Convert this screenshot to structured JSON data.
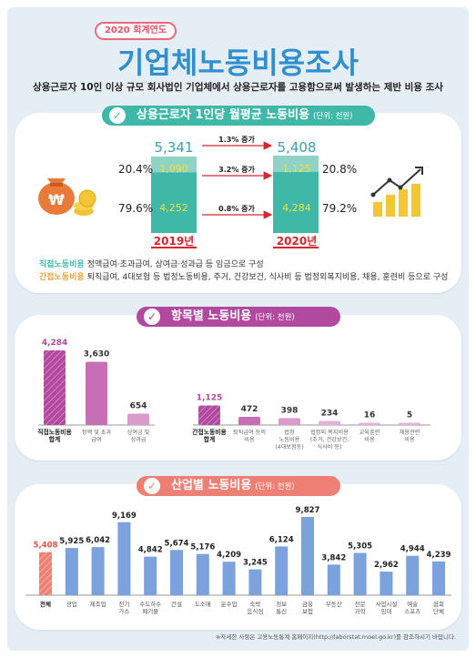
{
  "badge": "2020 회계연도",
  "title": "기업체노동비용조사",
  "subtitle": {
    "part1": "상용근로자 10인 이상 규모 회사법인 ",
    "bold1": "기업체",
    "part2": "에서 ",
    "bold2": "상용근로자",
    "part3": "를 고용함으로써 발생하는 ",
    "bold3": "제반 비용 조사"
  },
  "colors": {
    "blue": "#5b8ed6",
    "teal": "#3fb8a8",
    "purple": "#b14a9e",
    "salmon": "#ee7f74",
    "red": "#d7262e",
    "yellow": "#f5e033"
  },
  "section1": {
    "title": "상용근로자 1인당 월평균 노동비용",
    "unit": "(단위: 천원)",
    "y2019": {
      "label": "2019년",
      "total": "5,341",
      "indirect": "1,090",
      "direct": "4,252",
      "indirect_pct": "20.4%",
      "direct_pct": "79.6%"
    },
    "y2020": {
      "label": "2020년",
      "total": "5,408",
      "indirect": "1,125",
      "direct": "4,284",
      "indirect_pct": "20.8%",
      "direct_pct": "79.2%"
    },
    "growth": {
      "total": "1.3% 증가",
      "indirect": "3.2% 증가",
      "direct": "0.8% 증가"
    },
    "def_direct_key": "직접노동비용",
    "def_direct": "정액급여·초과급여, 상여금·성과급 등 임금으로 구성",
    "def_indirect_key": "간접노동비용",
    "def_indirect": "퇴직급여, 4대보험 등 법정노동비용, 주거, 건강보건, 식사비 등 법정외복지비용, 채용, 훈련비 등으로 구성"
  },
  "section2": {
    "title": "항목별 노동비용",
    "unit": "(단위: 천원)"
  },
  "section3": {
    "title": "산업별 노동비용",
    "unit": "(단위: 천원)"
  },
  "footnote": "※자세한 사항은 고용노동통계 홈페이지(http://laborstat.moel.go.kr)를 참조하시기 바랍니다.",
  "chart_data": [
    {
      "type": "bar",
      "title": "상용근로자 1인당 월평균 노동비용",
      "categories": [
        "2019년",
        "2020년"
      ],
      "series": [
        {
          "name": "직접노동비용",
          "values": [
            4252,
            4284
          ]
        },
        {
          "name": "간접노동비용",
          "values": [
            1090,
            1125
          ]
        }
      ],
      "totals": [
        5341,
        5408
      ]
    },
    {
      "type": "bar",
      "title": "항목별 노동비용",
      "groups": [
        {
          "items": [
            {
              "label": [
                "직접노동비용",
                "합계"
              ],
              "value": 4284,
              "display": "4,284",
              "strong": true
            },
            {
              "label": [
                "정액 및 초과",
                "급여"
              ],
              "value": 3630,
              "display": "3,630"
            },
            {
              "label": [
                "상여금 및",
                "성과급"
              ],
              "value": 654,
              "display": "654"
            }
          ]
        },
        {
          "items": [
            {
              "label": [
                "간접노동비용",
                "합계"
              ],
              "value": 1125,
              "display": "1,125",
              "strong": true
            },
            {
              "label": [
                "퇴직급여 등의",
                "비용"
              ],
              "value": 472,
              "display": "472"
            },
            {
              "label": [
                "법정",
                "노동비용",
                "(4대보험등)"
              ],
              "value": 398,
              "display": "398"
            },
            {
              "label": [
                "법정외 복지비용",
                "(주거, 건강보건,",
                "식사비 등)"
              ],
              "value": 234,
              "display": "234"
            },
            {
              "label": [
                "교육훈련",
                "비용"
              ],
              "value": 16,
              "display": "16"
            },
            {
              "label": [
                "채용관련",
                "비용"
              ],
              "value": 5,
              "display": "5"
            }
          ]
        }
      ]
    },
    {
      "type": "bar",
      "title": "산업별 노동비용",
      "categories": [
        [
          "전체"
        ],
        [
          "광업"
        ],
        [
          "제조업"
        ],
        [
          "전기",
          "가스"
        ],
        [
          "수도하수",
          "폐기물"
        ],
        [
          "건설"
        ],
        [
          "도소매"
        ],
        [
          "운수업"
        ],
        [
          "숙박",
          "음식점"
        ],
        [
          "정보",
          "통신"
        ],
        [
          "금융",
          "보험"
        ],
        [
          "부동산"
        ],
        [
          "전문",
          "과학"
        ],
        [
          "사업시설",
          "임대"
        ],
        [
          "예술",
          "스포츠"
        ],
        [
          "협회",
          "단체"
        ]
      ],
      "values": [
        5408,
        5925,
        6042,
        9169,
        4842,
        5674,
        5176,
        4209,
        3245,
        6124,
        9827,
        3842,
        5305,
        2962,
        4944,
        4239
      ],
      "display": [
        "5,408",
        "5,925",
        "6,042",
        "9,169",
        "4,842",
        "5,674",
        "5,176",
        "4,209",
        "3,245",
        "6,124",
        "9,827",
        "3,842",
        "5,305",
        "2,962",
        "4,944",
        "4,239"
      ]
    }
  ]
}
